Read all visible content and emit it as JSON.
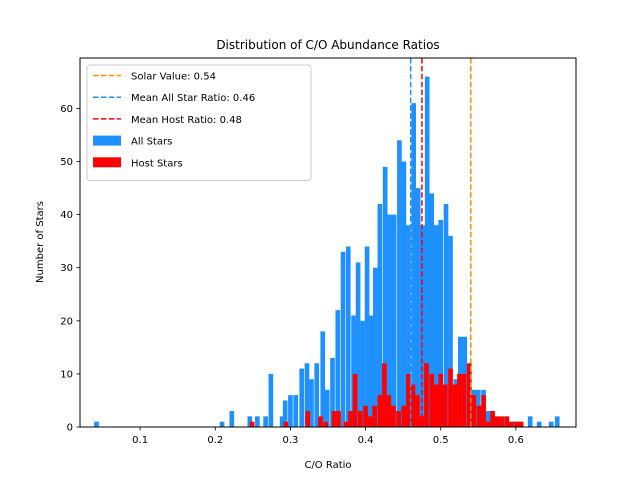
{
  "chart_data": {
    "type": "bar",
    "title": "Distribution of C/O Abundance Ratios",
    "xlabel": "C/O Ratio",
    "ylabel": "Number of Stars",
    "xlim": [
      0.02,
      0.68
    ],
    "ylim": [
      0,
      69.5
    ],
    "x_ticks": [
      "0.1",
      "0.2",
      "0.3",
      "0.4",
      "0.5",
      "0.6"
    ],
    "y_ticks": [
      "0",
      "10",
      "20",
      "30",
      "40",
      "50",
      "60"
    ],
    "grid": false,
    "legend_position": "top-left",
    "bin_width": 0.0062,
    "series": [
      {
        "name": "All Stars",
        "color": "#1e90ff",
        "x": [
          0.042,
          0.209,
          0.222,
          0.246,
          0.256,
          0.267,
          0.274,
          0.289,
          0.293,
          0.3,
          0.307,
          0.315,
          0.322,
          0.328,
          0.335,
          0.343,
          0.349,
          0.356,
          0.363,
          0.37,
          0.377,
          0.384,
          0.39,
          0.396,
          0.402,
          0.407,
          0.413,
          0.419,
          0.426,
          0.432,
          0.438,
          0.445,
          0.451,
          0.457,
          0.464,
          0.47,
          0.476,
          0.482,
          0.488,
          0.494,
          0.5,
          0.507,
          0.513,
          0.52,
          0.526,
          0.532,
          0.538,
          0.544,
          0.55,
          0.557,
          0.563,
          0.569,
          0.575,
          0.581,
          0.587,
          0.594,
          0.6,
          0.606,
          0.619,
          0.631,
          0.647,
          0.655
        ],
        "values": [
          1,
          1,
          3,
          2,
          2,
          2,
          10,
          2,
          5,
          6,
          6,
          11,
          12,
          9,
          12,
          18,
          7,
          13,
          22,
          33,
          34,
          21,
          31,
          20,
          34,
          21,
          30,
          42,
          49,
          40,
          40,
          54,
          50,
          38,
          61,
          45,
          38,
          66,
          44,
          38,
          39,
          42,
          36,
          9,
          17,
          17,
          11,
          7,
          7,
          7,
          3,
          3,
          2,
          1,
          2,
          1,
          1,
          1,
          2,
          1,
          1,
          2
        ]
      },
      {
        "name": "Host Stars",
        "color": "#ff0000",
        "x": [
          0.249,
          0.294,
          0.323,
          0.34,
          0.347,
          0.358,
          0.364,
          0.374,
          0.38,
          0.386,
          0.393,
          0.4,
          0.406,
          0.412,
          0.419,
          0.425,
          0.431,
          0.437,
          0.444,
          0.451,
          0.457,
          0.463,
          0.469,
          0.475,
          0.481,
          0.488,
          0.494,
          0.5,
          0.506,
          0.513,
          0.519,
          0.525,
          0.531,
          0.538,
          0.544,
          0.551,
          0.557,
          0.563,
          0.569,
          0.575,
          0.581,
          0.588,
          0.594,
          0.601,
          0.607,
          0.614,
          0.62
        ],
        "values": [
          1,
          1,
          3,
          2,
          1,
          3,
          3,
          1,
          3,
          10,
          3,
          4,
          2,
          4,
          6,
          12,
          6,
          4,
          3,
          4,
          10,
          8,
          6,
          2,
          12,
          10,
          8,
          10,
          8,
          11,
          8,
          10,
          10,
          12,
          6,
          4,
          6,
          1,
          3,
          2,
          2,
          2,
          1,
          1,
          1,
          0,
          0
        ]
      }
    ],
    "reference_lines": [
      {
        "label": "Solar Value: 0.54",
        "x": 0.54,
        "color": "#ff8c00"
      },
      {
        "label": "Mean All Star Ratio: 0.46",
        "x": 0.46,
        "color": "#1e90ff"
      },
      {
        "label": "Mean Host Ratio: 0.48",
        "x": 0.475,
        "color": "#ff0000"
      }
    ]
  }
}
